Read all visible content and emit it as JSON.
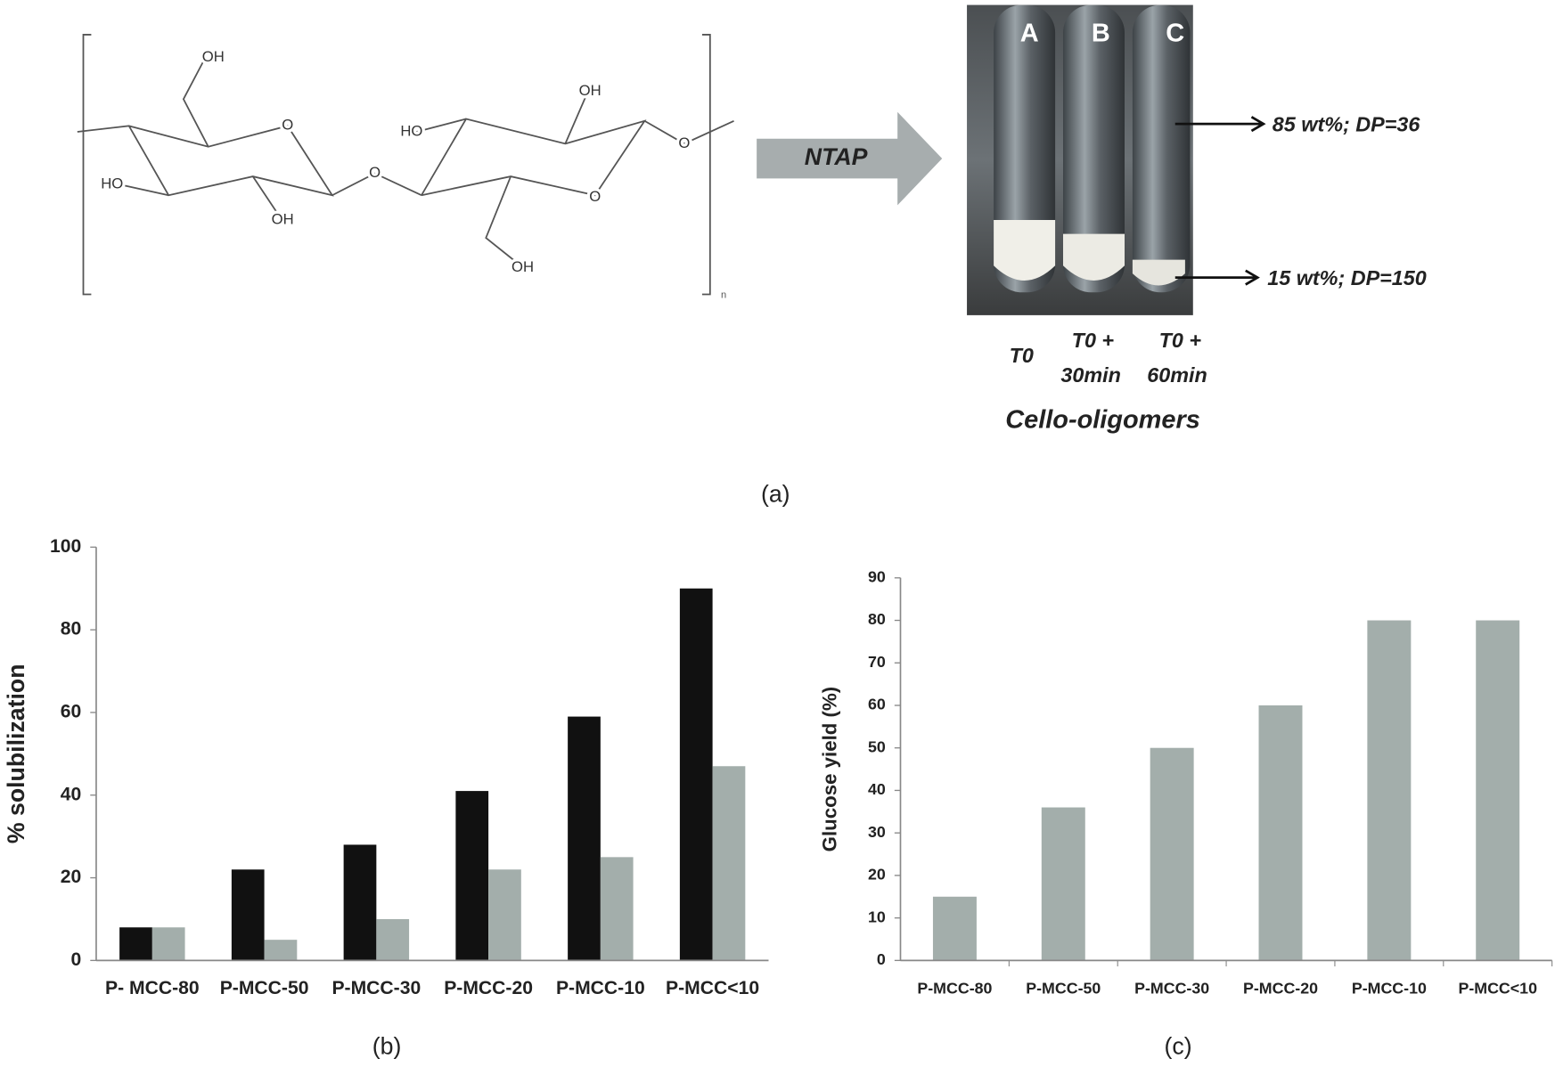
{
  "panel_a": {
    "structure_labels": [
      "OH",
      "O",
      "HO",
      "OH",
      "O",
      "HO",
      "OH",
      "O",
      "OH",
      "O"
    ],
    "repeat_unit": "n",
    "arrow_label": "NTAP",
    "tube_labels": [
      "A",
      "B",
      "C"
    ],
    "annotations": [
      "85 wt%; DP=36",
      "15 wt%; DP=150"
    ],
    "time_labels": [
      [
        "T0"
      ],
      [
        "T0 +",
        "30min"
      ],
      [
        "T0 +",
        "60min"
      ]
    ],
    "group_label": "Cello-oligomers",
    "caption": "(a)"
  },
  "chart_data": [
    {
      "type": "bar",
      "caption": "(b)",
      "y_label": "% solubilization",
      "categories": [
        "P- MCC-80",
        "P-MCC-50",
        "P-MCC-30",
        "P-MCC-20",
        "P-MCC-10",
        "P-MCC<10"
      ],
      "series": [
        {
          "color": "#111111",
          "values": [
            8,
            22,
            28,
            41,
            59,
            90
          ]
        },
        {
          "color": "#a3aeab",
          "values": [
            8,
            5,
            10,
            22,
            25,
            47
          ]
        }
      ],
      "ylim": [
        0,
        100
      ],
      "yticks": [
        0,
        20,
        40,
        60,
        80,
        100
      ],
      "grid": false
    },
    {
      "type": "bar",
      "caption": "(c)",
      "y_label": "Glucose yield (%)",
      "categories": [
        "P-MCC-80",
        "P-MCC-50",
        "P-MCC-30",
        "P-MCC-20",
        "P-MCC-10",
        "P-MCC<10"
      ],
      "series": [
        {
          "color": "#a3aeab",
          "values": [
            15,
            36,
            50,
            60,
            80,
            80
          ]
        }
      ],
      "ylim": [
        0,
        90
      ],
      "yticks": [
        0,
        10,
        20,
        30,
        40,
        50,
        60,
        70,
        80,
        90
      ],
      "grid": false
    }
  ]
}
